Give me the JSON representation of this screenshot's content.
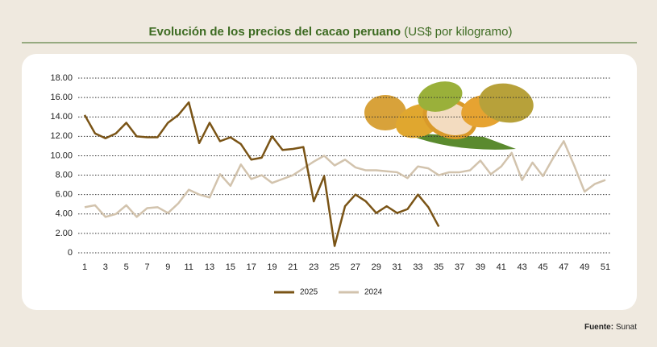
{
  "chart_data": {
    "type": "line",
    "title": "Evolución de los precios del cacao peruano",
    "subtitle": "(US$ por kilogramo)",
    "source_label": "Fuente:",
    "source": "Sunat",
    "x": [
      1,
      2,
      3,
      4,
      5,
      6,
      7,
      8,
      9,
      10,
      11,
      12,
      13,
      14,
      15,
      16,
      17,
      18,
      19,
      20,
      21,
      22,
      23,
      24,
      25,
      26,
      27,
      28,
      29,
      30,
      31,
      32,
      33,
      34,
      35,
      36,
      37,
      38,
      39,
      40,
      41,
      42,
      43,
      44,
      45,
      46,
      47,
      48,
      49,
      50,
      51
    ],
    "xlim": [
      1,
      51
    ],
    "xticks": [
      1,
      3,
      5,
      7,
      9,
      11,
      13,
      15,
      17,
      19,
      21,
      23,
      25,
      27,
      29,
      31,
      33,
      35,
      37,
      39,
      41,
      43,
      45,
      47,
      49,
      51
    ],
    "ylim": [
      0,
      18
    ],
    "yticks": [
      0,
      {
        "value": 2,
        "label": "2.00"
      },
      {
        "value": 4,
        "label": "4.00"
      },
      {
        "value": 6,
        "label": "6.00"
      },
      {
        "value": 8,
        "label": "8.00"
      },
      {
        "value": 10,
        "label": "10.00"
      },
      {
        "value": 12,
        "label": "12.00"
      },
      {
        "value": 14,
        "label": "14.00"
      },
      {
        "value": 16,
        "label": "16.00"
      },
      {
        "value": 18,
        "label": "18.00"
      }
    ],
    "grid": true,
    "legend": "bottom",
    "series": [
      {
        "name": "2025",
        "color": "#7a5416",
        "values": [
          14.2,
          12.3,
          11.8,
          12.3,
          13.4,
          12.0,
          11.9,
          11.9,
          13.4,
          14.2,
          15.5,
          11.3,
          13.4,
          11.5,
          11.9,
          11.2,
          9.6,
          9.8,
          12.0,
          10.6,
          10.7,
          10.9,
          5.3,
          7.9,
          0.7,
          4.8,
          6.0,
          5.3,
          4.1,
          4.8,
          4.1,
          4.5,
          6.0,
          4.7,
          2.7,
          null,
          null,
          null,
          null,
          null,
          null,
          null,
          null,
          null,
          null,
          null,
          null,
          null,
          null,
          null,
          null
        ]
      },
      {
        "name": "2024",
        "color": "#d2c3ad",
        "values": [
          4.7,
          4.9,
          3.7,
          4.0,
          4.9,
          3.7,
          4.6,
          4.7,
          4.1,
          5.1,
          6.5,
          6.0,
          5.7,
          8.1,
          6.9,
          9.1,
          7.6,
          8.0,
          7.2,
          7.6,
          8.0,
          8.7,
          9.4,
          10.0,
          9.0,
          9.6,
          8.8,
          8.5,
          8.5,
          8.4,
          8.3,
          7.7,
          8.9,
          8.7,
          8.0,
          8.3,
          8.3,
          8.5,
          9.5,
          8.1,
          8.9,
          10.3,
          7.5,
          9.3,
          7.9,
          9.8,
          11.5,
          9.0,
          6.3,
          7.1,
          7.5
        ]
      }
    ]
  }
}
